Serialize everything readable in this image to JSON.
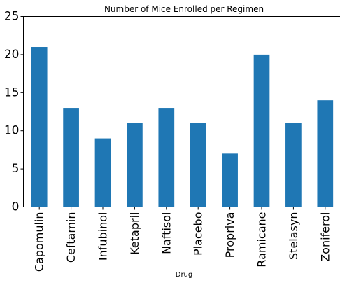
{
  "chart_data": {
    "type": "bar",
    "title": "Number of Mice Enrolled per Regimen",
    "xlabel": "Drug",
    "ylabel": "",
    "categories": [
      "Capomulin",
      "Ceftamin",
      "Infubinol",
      "Ketapril",
      "Naftisol",
      "Placebo",
      "Propriva",
      "Ramicane",
      "Stelasyn",
      "Zoniferol"
    ],
    "values": [
      21,
      13,
      9,
      11,
      13,
      11,
      7,
      20,
      11,
      14
    ],
    "ylim": [
      0,
      25
    ],
    "yticks": [
      0,
      5,
      10,
      15,
      20,
      25
    ],
    "grid": false,
    "legend": "none",
    "bar_color": "#1f77b4"
  }
}
